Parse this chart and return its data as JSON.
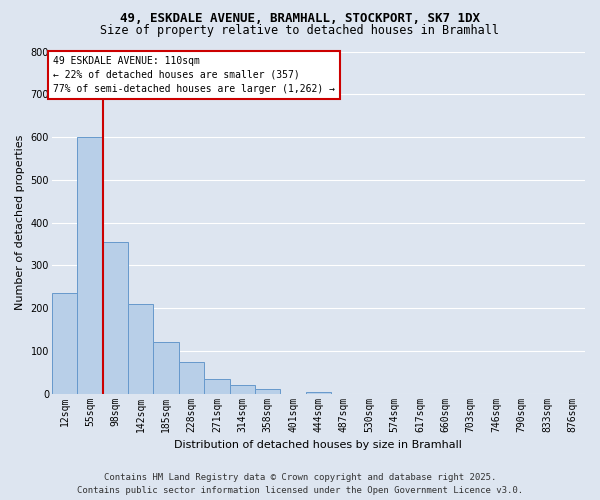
{
  "title_line1": "49, ESKDALE AVENUE, BRAMHALL, STOCKPORT, SK7 1DX",
  "title_line2": "Size of property relative to detached houses in Bramhall",
  "xlabel": "Distribution of detached houses by size in Bramhall",
  "ylabel": "Number of detached properties",
  "fig_bg_color": "#dde5f0",
  "plot_bg_color": "#dde5f0",
  "bar_color": "#b8cfe8",
  "bar_edge_color": "#6699cc",
  "categories": [
    "12sqm",
    "55sqm",
    "98sqm",
    "142sqm",
    "185sqm",
    "228sqm",
    "271sqm",
    "314sqm",
    "358sqm",
    "401sqm",
    "444sqm",
    "487sqm",
    "530sqm",
    "574sqm",
    "617sqm",
    "660sqm",
    "703sqm",
    "746sqm",
    "790sqm",
    "833sqm",
    "876sqm"
  ],
  "values": [
    235,
    600,
    355,
    210,
    120,
    75,
    35,
    20,
    10,
    0,
    5,
    0,
    0,
    0,
    0,
    0,
    0,
    0,
    0,
    0,
    0
  ],
  "ylim": [
    0,
    800
  ],
  "yticks": [
    0,
    100,
    200,
    300,
    400,
    500,
    600,
    700,
    800
  ],
  "annotation_text": "49 ESKDALE AVENUE: 110sqm\n← 22% of detached houses are smaller (357)\n77% of semi-detached houses are larger (1,262) →",
  "vline_pos": 1.5,
  "vline_color": "#cc0000",
  "annotation_box_facecolor": "#ffffff",
  "annotation_box_edgecolor": "#cc0000",
  "footer_line1": "Contains HM Land Registry data © Crown copyright and database right 2025.",
  "footer_line2": "Contains public sector information licensed under the Open Government Licence v3.0.",
  "grid_color": "#ffffff",
  "title_fontsize": 9,
  "subtitle_fontsize": 8.5,
  "tick_fontsize": 7,
  "label_fontsize": 8,
  "footer_fontsize": 6.5
}
